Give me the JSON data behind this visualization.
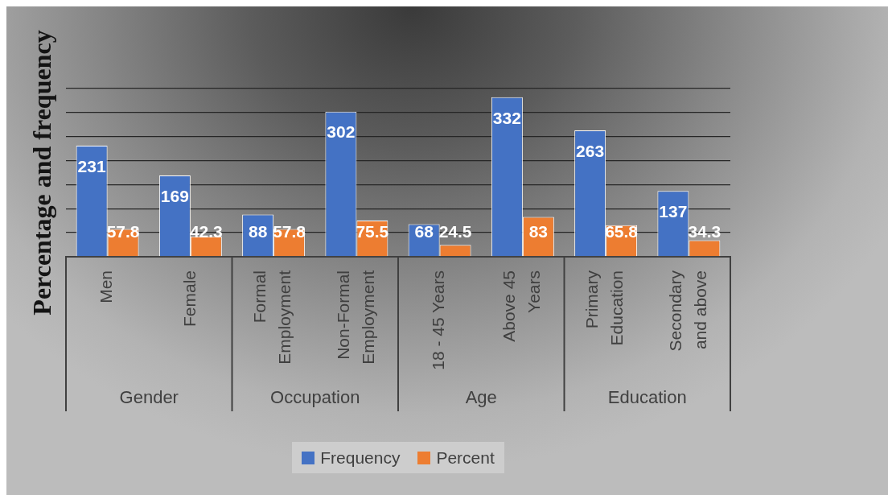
{
  "chart_data": {
    "type": "bar",
    "ylabel": "Percentage and frequency",
    "categories": [
      "Men",
      "Female",
      "Formal Employment",
      "Non-Formal Employment",
      "18 - 45 Years",
      "Above 45 Years",
      "Primary Education",
      "Secondary and above"
    ],
    "series": [
      {
        "name": "Frequency",
        "color": "#4472c4",
        "values": [
          231,
          169,
          88,
          302,
          68,
          332,
          263,
          137
        ]
      },
      {
        "name": "Percent",
        "color": "#ed7d31",
        "values": [
          57.8,
          42.3,
          57.8,
          75.5,
          24.5,
          83,
          65.8,
          34.3
        ]
      }
    ],
    "ylim": [
      0,
      350
    ],
    "tick_labels": "x",
    "grid": "y",
    "legend": "bottom",
    "data_labels": true,
    "annotations": [
      "Gender",
      "Occupation",
      "Age",
      "Education"
    ]
  }
}
